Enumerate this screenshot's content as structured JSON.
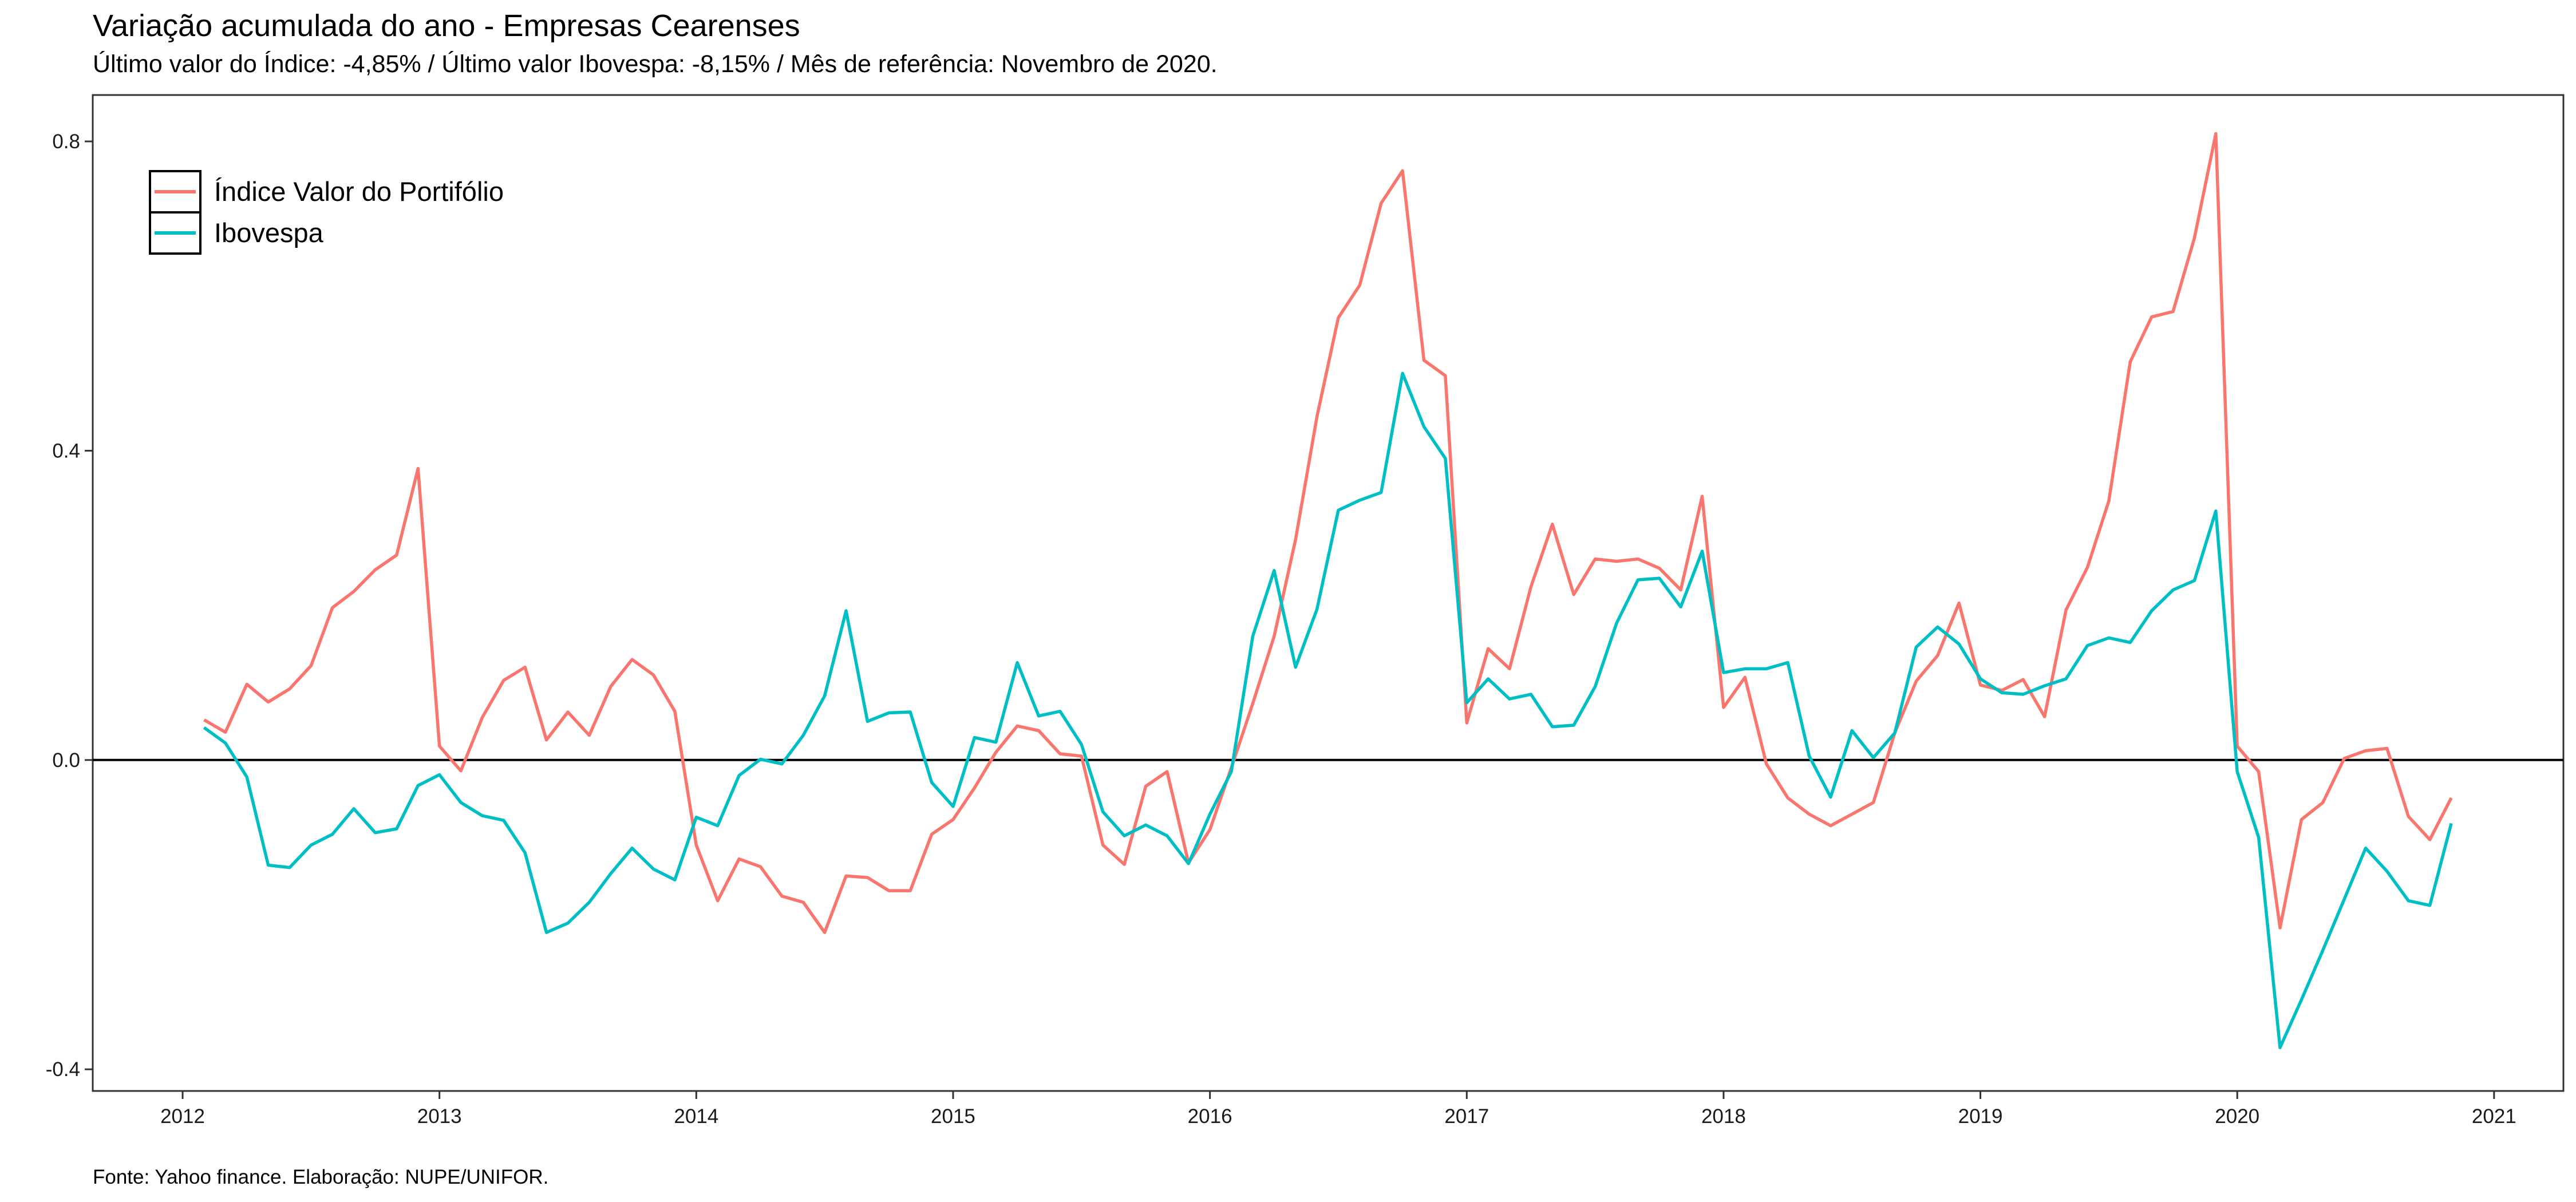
{
  "chart_data": {
    "type": "line",
    "title": "Variação acumulada do ano - Empresas Cearenses",
    "subtitle": "Último valor do Índice: -4,85% / Último valor Ibovespa: -8,15% / Mês de referência: Novembro de 2020.",
    "caption": "Fonte: Yahoo finance. Elaboração: NUPE/UNIFOR.",
    "xlabel": "",
    "ylabel": "",
    "xlim": [
      2011.65,
      2021.27
    ],
    "ylim": [
      -0.428,
      0.86
    ],
    "x_ticks": [
      2012,
      2013,
      2014,
      2015,
      2016,
      2017,
      2018,
      2019,
      2020,
      2021
    ],
    "x_tick_labels": [
      "2012",
      "2013",
      "2014",
      "2015",
      "2016",
      "2017",
      "2018",
      "2019",
      "2020",
      "2021"
    ],
    "y_ticks": [
      -0.4,
      0.0,
      0.4,
      0.8
    ],
    "y_tick_labels": [
      "-0.4",
      "0.0",
      "0.4",
      "0.8"
    ],
    "reference_line": 0.0,
    "legend_position": "top-left",
    "grid": false,
    "x_start_month": "2012-02",
    "x_end_month": "2020-11",
    "series": [
      {
        "name": "Índice Valor do Portifólio",
        "color": "#F8766D",
        "values": [
          0.052,
          0.036,
          0.098,
          0.075,
          0.092,
          0.122,
          0.197,
          0.218,
          0.246,
          0.265,
          0.377,
          0.018,
          -0.014,
          0.055,
          0.103,
          0.12,
          0.026,
          0.062,
          0.032,
          0.095,
          0.13,
          0.11,
          0.063,
          -0.11,
          -0.182,
          -0.128,
          -0.138,
          -0.176,
          -0.184,
          -0.223,
          -0.15,
          -0.152,
          -0.169,
          -0.169,
          -0.096,
          -0.077,
          -0.036,
          0.01,
          0.044,
          0.038,
          0.008,
          0.005,
          -0.11,
          -0.135,
          -0.034,
          -0.015,
          -0.133,
          -0.09,
          -0.01,
          0.073,
          0.16,
          0.285,
          0.444,
          0.572,
          0.614,
          0.72,
          0.762,
          0.517,
          0.497,
          0.048,
          0.144,
          0.118,
          0.224,
          0.305,
          0.214,
          0.26,
          0.257,
          0.26,
          0.248,
          0.22,
          0.341,
          0.068,
          0.107,
          -0.005,
          -0.049,
          -0.07,
          -0.085,
          -0.07,
          -0.055,
          0.035,
          0.102,
          0.135,
          0.203,
          0.097,
          0.09,
          0.104,
          0.056,
          0.194,
          0.249,
          0.335,
          0.515,
          0.573,
          0.58,
          0.675,
          0.81,
          0.018,
          -0.015,
          -0.217,
          -0.077,
          -0.055,
          0.002,
          0.012,
          0.015,
          -0.073,
          -0.103,
          -0.049
        ]
      },
      {
        "name": "Ibovespa",
        "color": "#00BFC4",
        "values": [
          0.042,
          0.022,
          -0.022,
          -0.136,
          -0.139,
          -0.11,
          -0.096,
          -0.063,
          -0.094,
          -0.089,
          -0.033,
          -0.019,
          -0.055,
          -0.072,
          -0.078,
          -0.12,
          -0.223,
          -0.211,
          -0.184,
          -0.147,
          -0.114,
          -0.141,
          -0.155,
          -0.074,
          -0.085,
          -0.02,
          0.001,
          -0.005,
          0.032,
          0.083,
          0.193,
          0.05,
          0.061,
          0.062,
          -0.029,
          -0.06,
          0.029,
          0.023,
          0.126,
          0.057,
          0.063,
          0.02,
          -0.067,
          -0.098,
          -0.084,
          -0.098,
          -0.134,
          -0.07,
          -0.015,
          0.16,
          0.245,
          0.12,
          0.195,
          0.323,
          0.336,
          0.346,
          0.5,
          0.431,
          0.39,
          0.074,
          0.105,
          0.079,
          0.085,
          0.043,
          0.045,
          0.095,
          0.177,
          0.233,
          0.235,
          0.198,
          0.27,
          0.113,
          0.118,
          0.118,
          0.126,
          0.005,
          -0.048,
          0.038,
          0.003,
          0.035,
          0.146,
          0.172,
          0.15,
          0.105,
          0.087,
          0.085,
          0.096,
          0.105,
          0.148,
          0.158,
          0.152,
          0.193,
          0.22,
          0.232,
          0.322,
          -0.015,
          -0.1,
          -0.372,
          -0.31,
          -0.246,
          -0.18,
          -0.114,
          -0.144,
          -0.182,
          -0.188,
          -0.082
        ]
      }
    ]
  }
}
